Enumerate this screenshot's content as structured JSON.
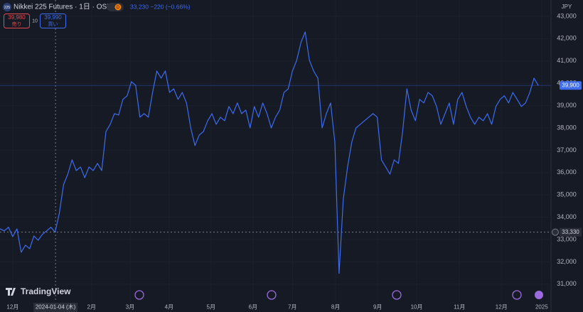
{
  "header": {
    "logo": "225",
    "title": "Nikkei 225 Futures · 1日 · OSE",
    "badge": "D",
    "quote": "33,230 −220 (−0.66%)",
    "currency": "JPY",
    "sell": {
      "price": "39,980",
      "label": "売り"
    },
    "qty": "10",
    "buy": {
      "price": "39,990",
      "label": "買い"
    },
    "watermark": "TradingView"
  },
  "chart_data": {
    "type": "line",
    "color": "#3d6cf0",
    "values": [
      33480,
      33390,
      33550,
      33130,
      33480,
      32430,
      32750,
      32590,
      33160,
      32970,
      33230,
      33390,
      33550,
      33330,
      34180,
      35460,
      35930,
      36570,
      36090,
      36250,
      35770,
      36250,
      36090,
      36410,
      36090,
      37840,
      38160,
      38640,
      38580,
      39280,
      39440,
      40070,
      39910,
      38480,
      38640,
      38480,
      39590,
      40550,
      40230,
      40550,
      39590,
      39750,
      39280,
      39590,
      39120,
      38000,
      37210,
      37680,
      37840,
      38320,
      38640,
      38160,
      38480,
      38320,
      38960,
      38640,
      39120,
      38640,
      38800,
      38000,
      38960,
      38480,
      39120,
      38640,
      38000,
      38480,
      38800,
      39590,
      39750,
      40550,
      41030,
      41820,
      42300,
      41030,
      40550,
      40230,
      38000,
      38640,
      39120,
      37370,
      31480,
      34820,
      36250,
      37370,
      38000,
      38160,
      38320,
      38480,
      38640,
      38480,
      36570,
      36250,
      35930,
      36570,
      36410,
      37840,
      39750,
      38800,
      38320,
      39280,
      39120,
      39590,
      39440,
      38960,
      38160,
      38640,
      39120,
      38160,
      39280,
      39590,
      38960,
      38480,
      38160,
      38480,
      38320,
      38640,
      38160,
      38960,
      39280,
      39440,
      39120,
      39590,
      39280,
      38960,
      39120,
      39590,
      40230,
      39900
    ],
    "xlim": [
      0,
      130
    ],
    "xticks": [
      {
        "value": 3,
        "label": "12月"
      },
      {
        "value": 13.1,
        "label": "2024-01-04 (木)"
      },
      {
        "value": 21.6,
        "label": "2月"
      },
      {
        "value": 30.7,
        "label": "3月"
      },
      {
        "value": 39.9,
        "label": "4月"
      },
      {
        "value": 49.8,
        "label": "5月"
      },
      {
        "value": 59.7,
        "label": "6月"
      },
      {
        "value": 69,
        "label": "7月"
      },
      {
        "value": 79.2,
        "label": "8月"
      },
      {
        "value": 89.1,
        "label": "9月"
      },
      {
        "value": 98.3,
        "label": "10月"
      },
      {
        "value": 108.4,
        "label": "11月"
      },
      {
        "value": 118.3,
        "label": "12月"
      },
      {
        "value": 127.8,
        "label": "2025"
      }
    ],
    "crosshair_xtick": 1,
    "ylim": [
      30200,
      43730
    ],
    "yticks": [
      {
        "value": 31000,
        "label": "31,000"
      },
      {
        "value": 32000,
        "label": "32,000"
      },
      {
        "value": 33000,
        "label": "33,000"
      },
      {
        "value": 34000,
        "label": "34,000"
      },
      {
        "value": 35000,
        "label": "35,000"
      },
      {
        "value": 36000,
        "label": "36,000"
      },
      {
        "value": 37000,
        "label": "37,000"
      },
      {
        "value": 38000,
        "label": "38,000"
      },
      {
        "value": 39000,
        "label": "39,000"
      },
      {
        "value": 40000,
        "label": "40,000"
      },
      {
        "value": 41000,
        "label": "41,000"
      },
      {
        "value": 42000,
        "label": "42,000"
      },
      {
        "value": 43000,
        "label": "43,000"
      }
    ],
    "last_price": {
      "value": 39900,
      "label": "39,900"
    },
    "crosshair": {
      "value": 33330,
      "label": "33,330"
    }
  }
}
